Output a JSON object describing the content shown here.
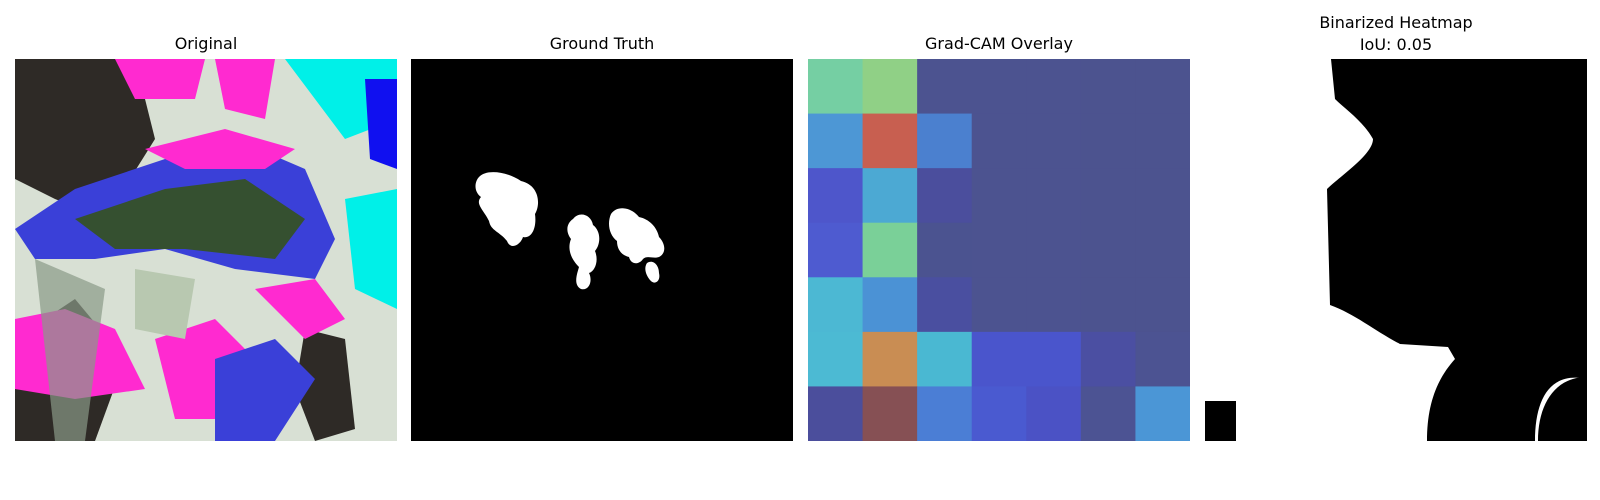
{
  "panels": [
    {
      "title": "Original",
      "subtitle": ""
    },
    {
      "title": "Ground Truth",
      "subtitle": ""
    },
    {
      "title": "Grad-CAM Overlay",
      "subtitle": ""
    },
    {
      "title": "Binarized Heatmap",
      "subtitle": "IoU: 0.05"
    }
  ],
  "colors": {
    "background": "#ffffff",
    "mask_fg": "#ffffff",
    "mask_bg": "#000000"
  },
  "gradcam_grid": [
    [
      "#75cfa3",
      "#90d086",
      "#4c5390",
      "#4c5390",
      "#4c5390",
      "#4c538f",
      "#4c538f"
    ],
    [
      "#4d97d5",
      "#c85f50",
      "#4b80cf",
      "#4c5390",
      "#4c5390",
      "#4c538f",
      "#4c538f"
    ],
    [
      "#4e56cb",
      "#4ca9d3",
      "#4b4e9d",
      "#4c5390",
      "#4c5390",
      "#4c538f",
      "#4c538f"
    ],
    [
      "#4e5bd0",
      "#7ad098",
      "#4b5390",
      "#4c5390",
      "#4c5390",
      "#4c538f",
      "#4c538f"
    ],
    [
      "#4cb8d3",
      "#4b92d5",
      "#4a4fa0",
      "#4c5390",
      "#4c5390",
      "#4c538f",
      "#4c538f"
    ],
    [
      "#4cbad3",
      "#c98d53",
      "#4ab8d2",
      "#4a55cc",
      "#4a55cc",
      "#4b4fa2",
      "#4c5392"
    ],
    [
      "#4b4e9c",
      "#865054",
      "#4b7ed5",
      "#4a5ad0",
      "#4b52c5",
      "#4c5393",
      "#4b96d6"
    ]
  ]
}
